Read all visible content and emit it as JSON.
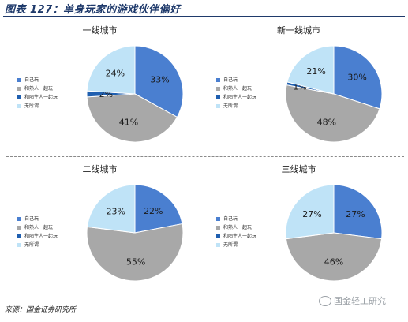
{
  "figure": {
    "title": "图表 127：单身玩家的游戏伙伴偏好",
    "source": "来源：国金证券研究所",
    "watermark": "国金轻工研究"
  },
  "legend": {
    "labels": [
      "自己玩",
      "和熟人一起玩",
      "和陌生人一起玩",
      "无所谓"
    ],
    "colors": [
      "#4a7fd0",
      "#a8a8a8",
      "#1f5fb0",
      "#bfe3f7"
    ]
  },
  "chart_data": [
    {
      "type": "pie",
      "title": "一线城市",
      "categories": [
        "自己玩",
        "和熟人一起玩",
        "和陌生人一起玩",
        "无所谓"
      ],
      "values": [
        33,
        41,
        2,
        24
      ],
      "value_labels": [
        "33%",
        "41%",
        "2%",
        "24%"
      ]
    },
    {
      "type": "pie",
      "title": "新一线城市",
      "categories": [
        "自己玩",
        "和熟人一起玩",
        "和陌生人一起玩",
        "无所谓"
      ],
      "values": [
        30,
        48,
        1,
        21
      ],
      "value_labels": [
        "30%",
        "48%",
        "1%",
        "21%"
      ]
    },
    {
      "type": "pie",
      "title": "二线城市",
      "categories": [
        "自己玩",
        "和熟人一起玩",
        "和陌生人一起玩",
        "无所谓"
      ],
      "values": [
        22,
        55,
        0,
        23
      ],
      "value_labels": [
        "22%",
        "55%",
        "",
        "23%"
      ]
    },
    {
      "type": "pie",
      "title": "三线城市",
      "categories": [
        "自己玩",
        "和熟人一起玩",
        "和陌生人一起玩",
        "无所谓"
      ],
      "values": [
        27,
        46,
        0,
        27
      ],
      "value_labels": [
        "27%",
        "46%",
        "",
        "27%"
      ]
    }
  ]
}
